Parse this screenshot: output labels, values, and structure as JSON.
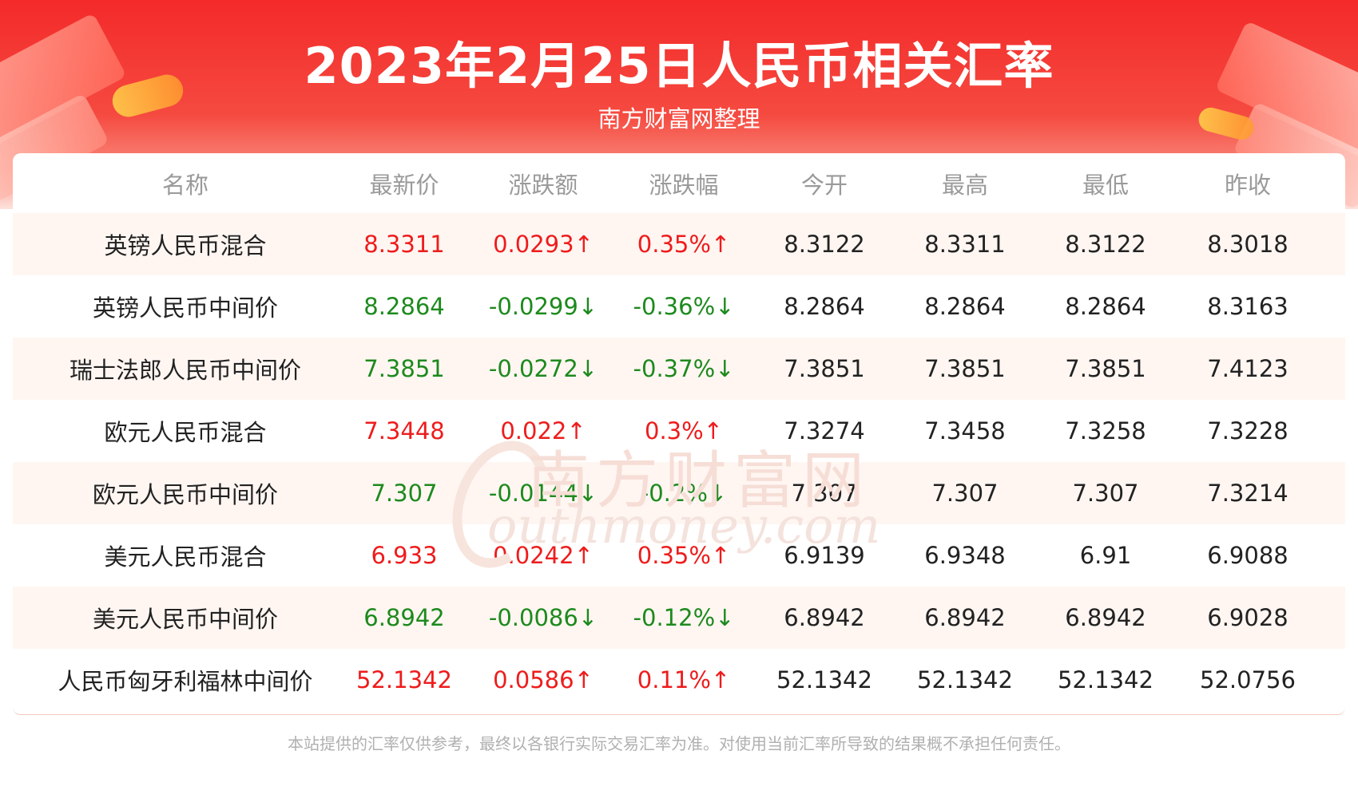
{
  "header": {
    "title": "2023年2月25日人民币相关汇率",
    "subtitle": "南方财富网整理"
  },
  "table": {
    "columns": [
      "名称",
      "最新价",
      "涨跌额",
      "涨跌幅",
      "今开",
      "最高",
      "最低",
      "昨收"
    ],
    "rows": [
      {
        "name": "英镑人民币混合",
        "latest": "8.3311",
        "change": "0.0293↑",
        "pct": "0.35%↑",
        "open": "8.3122",
        "high": "8.3311",
        "low": "8.3122",
        "prev": "8.3018",
        "direction": "up"
      },
      {
        "name": "英镑人民币中间价",
        "latest": "8.2864",
        "change": "-0.0299↓",
        "pct": "-0.36%↓",
        "open": "8.2864",
        "high": "8.2864",
        "low": "8.2864",
        "prev": "8.3163",
        "direction": "down"
      },
      {
        "name": "瑞士法郎人民币中间价",
        "latest": "7.3851",
        "change": "-0.0272↓",
        "pct": "-0.37%↓",
        "open": "7.3851",
        "high": "7.3851",
        "low": "7.3851",
        "prev": "7.4123",
        "direction": "down"
      },
      {
        "name": "欧元人民币混合",
        "latest": "7.3448",
        "change": "0.022↑",
        "pct": "0.3%↑",
        "open": "7.3274",
        "high": "7.3458",
        "low": "7.3258",
        "prev": "7.3228",
        "direction": "up"
      },
      {
        "name": "欧元人民币中间价",
        "latest": "7.307",
        "change": "-0.0144↓",
        "pct": "-0.2%↓",
        "open": "7.307",
        "high": "7.307",
        "low": "7.307",
        "prev": "7.3214",
        "direction": "down"
      },
      {
        "name": "美元人民币混合",
        "latest": "6.933",
        "change": "0.0242↑",
        "pct": "0.35%↑",
        "open": "6.9139",
        "high": "6.9348",
        "low": "6.91",
        "prev": "6.9088",
        "direction": "up"
      },
      {
        "name": "美元人民币中间价",
        "latest": "6.8942",
        "change": "-0.0086↓",
        "pct": "-0.12%↓",
        "open": "6.8942",
        "high": "6.8942",
        "low": "6.8942",
        "prev": "6.9028",
        "direction": "down"
      },
      {
        "name": "人民币匈牙利福林中间价",
        "latest": "52.1342",
        "change": "0.0586↑",
        "pct": "0.11%↑",
        "open": "52.1342",
        "high": "52.1342",
        "low": "52.1342",
        "prev": "52.0756",
        "direction": "up"
      }
    ]
  },
  "watermark": {
    "cn": "南方财富网",
    "en": "outhmoney.com"
  },
  "footer": {
    "disclaimer": "本站提供的汇率仅供参考，最终以各银行实际交易汇率为准。对使用当前汇率所导致的结果概不承担任何责任。"
  },
  "colors": {
    "up": "#ee1c1c",
    "down": "#1d8a1d",
    "header": "#f42a2a",
    "row_alt": "#fff6f2"
  }
}
